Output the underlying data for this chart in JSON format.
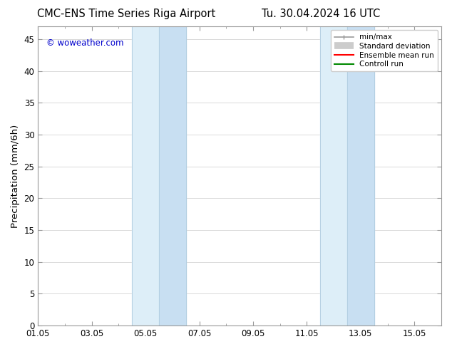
{
  "title_left": "CMC-ENS Time Series Riga Airport",
  "title_right": "Tu. 30.04.2024 16 UTC",
  "ylabel": "Precipitation (mm/6h)",
  "xlabel": "",
  "ylim": [
    0,
    47
  ],
  "yticks": [
    0,
    5,
    10,
    15,
    20,
    25,
    30,
    35,
    40,
    45
  ],
  "xlim": [
    0,
    15
  ],
  "xtick_labels": [
    "01.05",
    "03.05",
    "05.05",
    "07.05",
    "09.05",
    "11.05",
    "13.05",
    "15.05"
  ],
  "xtick_positions": [
    0,
    2,
    4,
    6,
    8,
    10,
    12,
    14
  ],
  "shaded_bands": [
    {
      "x_start": 3.5,
      "x_mid": 4.5,
      "x_end": 5.5,
      "color_light": "#ddeef8",
      "color_dark": "#c8dff2"
    },
    {
      "x_start": 10.5,
      "x_mid": 11.5,
      "x_end": 12.5,
      "color_light": "#ddeef8",
      "color_dark": "#c8dff2"
    }
  ],
  "watermark": "© woweather.com",
  "watermark_color": "#0000cc",
  "background_color": "#ffffff",
  "legend_entries": [
    {
      "label": "min/max",
      "color": "#999999",
      "lw": 1.2,
      "style": "minmax"
    },
    {
      "label": "Standard deviation",
      "color": "#cccccc",
      "lw": 7,
      "style": "band"
    },
    {
      "label": "Ensemble mean run",
      "color": "#ff0000",
      "lw": 1.5,
      "style": "line"
    },
    {
      "label": "Controll run",
      "color": "#008800",
      "lw": 1.5,
      "style": "line"
    }
  ],
  "grid_color": "#cccccc",
  "spine_color": "#999999",
  "tick_label_fontsize": 8.5,
  "axis_label_fontsize": 9.5,
  "title_fontsize": 10.5
}
